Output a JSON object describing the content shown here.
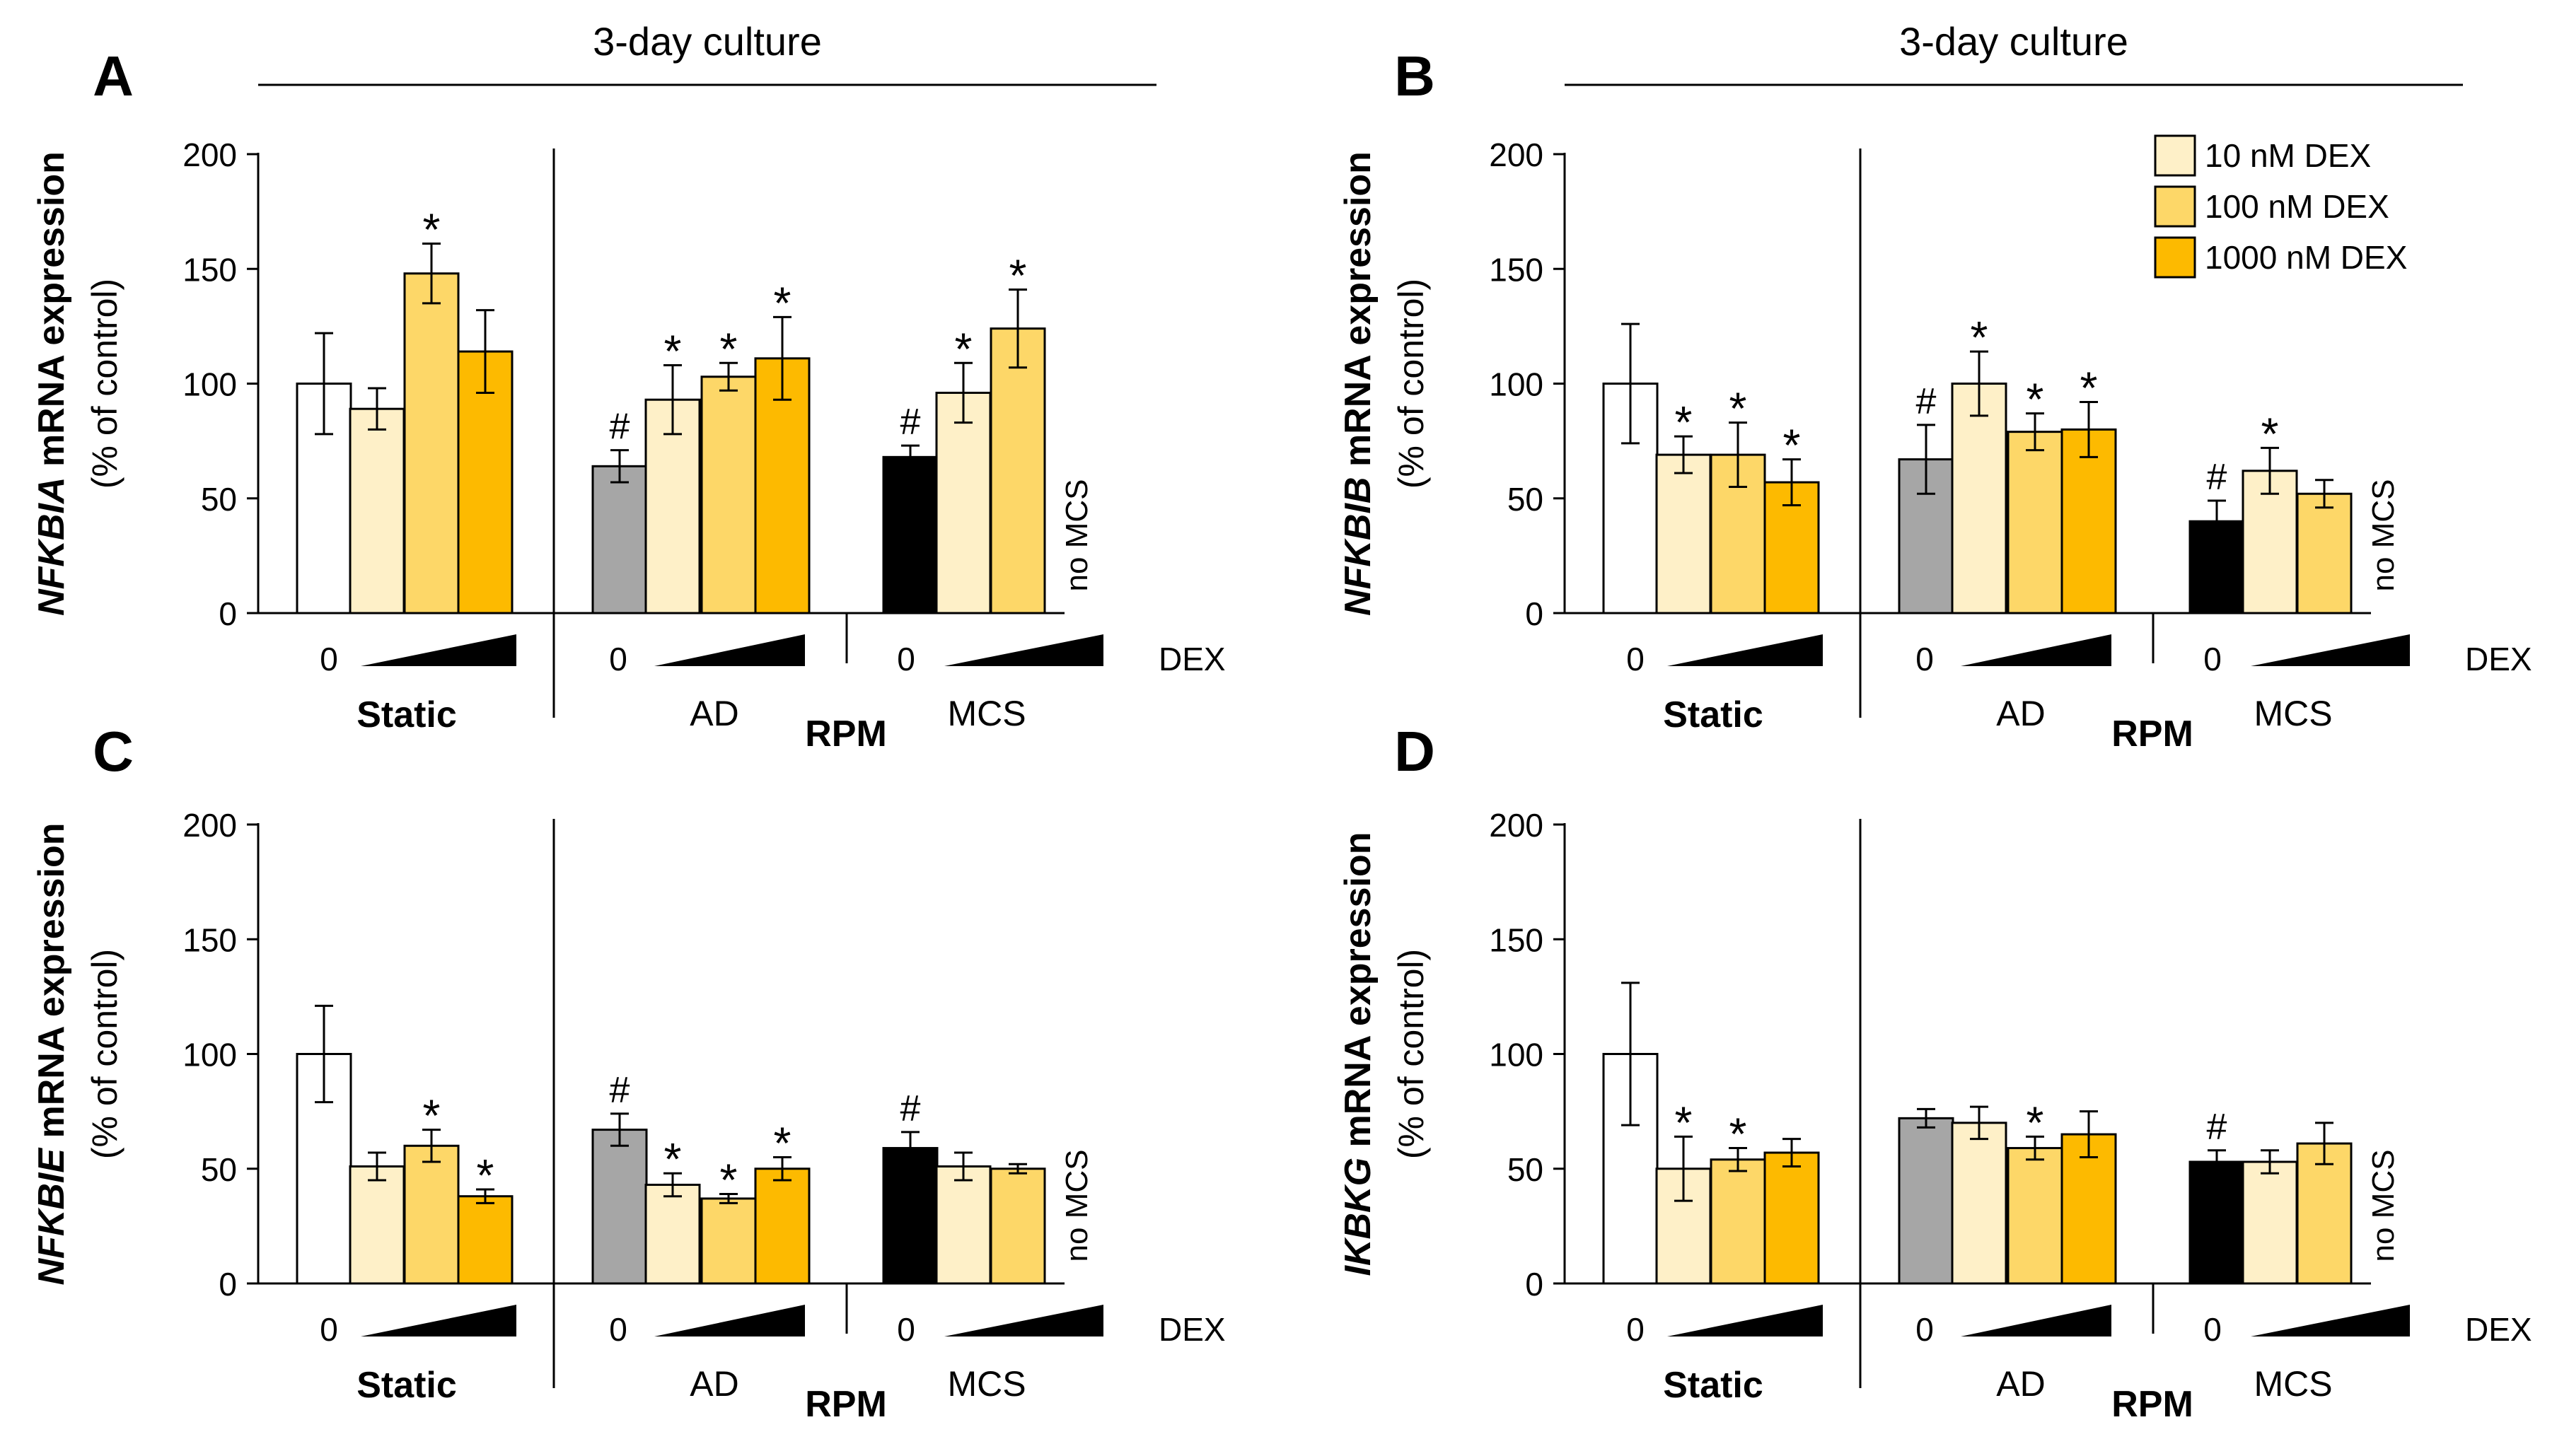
{
  "figure": {
    "culture_label": "3-day culture",
    "y_axis_unit": "(% of control)",
    "y_axis_suffix": " mRNA expression",
    "dex_axis_label": "DEX",
    "zero_label": "0",
    "static_label": "Static",
    "ad_label": "AD",
    "mcs_label": "MCS",
    "rpm_label": "RPM",
    "no_mcs_label": "no MCS",
    "legend": [
      {
        "label": "10 nM DEX",
        "color": "#FEF0C8"
      },
      {
        "label": "100 nM DEX",
        "color": "#FDD768"
      },
      {
        "label": "1000 nM DEX",
        "color": "#FDBA00"
      }
    ],
    "colors": {
      "control_static": "#FFFFFF",
      "control_ad": "#A6A6A6",
      "control_mcs": "#000000",
      "dex10": "#FEF0C8",
      "dex100": "#FDD768",
      "dex1000": "#FDBA00"
    }
  },
  "chart_data": [
    {
      "panel": "A",
      "type": "bar",
      "gene": "NFKBIA",
      "ylim": [
        0,
        200
      ],
      "yticks": [
        0,
        50,
        100,
        150,
        200
      ],
      "show_title": true,
      "show_legend": false,
      "groups": [
        {
          "name": "Static",
          "bars": [
            {
              "dex": "0",
              "value": 100,
              "err": 22,
              "mark": ""
            },
            {
              "dex": "10",
              "value": 89,
              "err": 9,
              "mark": ""
            },
            {
              "dex": "100",
              "value": 148,
              "err": 13,
              "mark": "*"
            },
            {
              "dex": "1000",
              "value": 114,
              "err": 18,
              "mark": ""
            }
          ]
        },
        {
          "name": "AD",
          "bars": [
            {
              "dex": "0",
              "value": 64,
              "err": 7,
              "mark": "#"
            },
            {
              "dex": "10",
              "value": 93,
              "err": 15,
              "mark": "*"
            },
            {
              "dex": "100",
              "value": 103,
              "err": 6,
              "mark": "*"
            },
            {
              "dex": "1000",
              "value": 111,
              "err": 18,
              "mark": "*"
            }
          ]
        },
        {
          "name": "MCS",
          "no_1000": true,
          "bars": [
            {
              "dex": "0",
              "value": 68,
              "err": 5,
              "mark": "#"
            },
            {
              "dex": "10",
              "value": 96,
              "err": 13,
              "mark": "*"
            },
            {
              "dex": "100",
              "value": 124,
              "err": 17,
              "mark": "*"
            }
          ]
        }
      ]
    },
    {
      "panel": "B",
      "type": "bar",
      "gene": "NFKBIB",
      "ylim": [
        0,
        200
      ],
      "yticks": [
        0,
        50,
        100,
        150,
        200
      ],
      "show_title": true,
      "show_legend": true,
      "groups": [
        {
          "name": "Static",
          "bars": [
            {
              "dex": "0",
              "value": 100,
              "err": 26,
              "mark": ""
            },
            {
              "dex": "10",
              "value": 69,
              "err": 8,
              "mark": "*"
            },
            {
              "dex": "100",
              "value": 69,
              "err": 14,
              "mark": "*"
            },
            {
              "dex": "1000",
              "value": 57,
              "err": 10,
              "mark": "*"
            }
          ]
        },
        {
          "name": "AD",
          "bars": [
            {
              "dex": "0",
              "value": 67,
              "err": 15,
              "mark": "#"
            },
            {
              "dex": "10",
              "value": 100,
              "err": 14,
              "mark": "*"
            },
            {
              "dex": "100",
              "value": 79,
              "err": 8,
              "mark": "*"
            },
            {
              "dex": "1000",
              "value": 80,
              "err": 12,
              "mark": "*"
            }
          ]
        },
        {
          "name": "MCS",
          "no_1000": true,
          "bars": [
            {
              "dex": "0",
              "value": 40,
              "err": 9,
              "mark": "#"
            },
            {
              "dex": "10",
              "value": 62,
              "err": 10,
              "mark": "*"
            },
            {
              "dex": "100",
              "value": 52,
              "err": 6,
              "mark": ""
            }
          ]
        }
      ]
    },
    {
      "panel": "C",
      "type": "bar",
      "gene": "NFKBIE",
      "ylim": [
        0,
        200
      ],
      "yticks": [
        0,
        50,
        100,
        150,
        200
      ],
      "show_title": false,
      "show_legend": false,
      "groups": [
        {
          "name": "Static",
          "bars": [
            {
              "dex": "0",
              "value": 100,
              "err": 21,
              "mark": ""
            },
            {
              "dex": "10",
              "value": 51,
              "err": 6,
              "mark": ""
            },
            {
              "dex": "100",
              "value": 60,
              "err": 7,
              "mark": "*"
            },
            {
              "dex": "1000",
              "value": 38,
              "err": 3,
              "mark": "*"
            }
          ]
        },
        {
          "name": "AD",
          "bars": [
            {
              "dex": "0",
              "value": 67,
              "err": 7,
              "mark": "#"
            },
            {
              "dex": "10",
              "value": 43,
              "err": 5,
              "mark": "*"
            },
            {
              "dex": "100",
              "value": 37,
              "err": 2,
              "mark": "*"
            },
            {
              "dex": "1000",
              "value": 50,
              "err": 5,
              "mark": "*"
            }
          ]
        },
        {
          "name": "MCS",
          "no_1000": true,
          "bars": [
            {
              "dex": "0",
              "value": 59,
              "err": 7,
              "mark": "#"
            },
            {
              "dex": "10",
              "value": 51,
              "err": 6,
              "mark": ""
            },
            {
              "dex": "100",
              "value": 50,
              "err": 2,
              "mark": ""
            }
          ]
        }
      ]
    },
    {
      "panel": "D",
      "type": "bar",
      "gene": "IKBKG",
      "ylim": [
        0,
        200
      ],
      "yticks": [
        0,
        50,
        100,
        150,
        200
      ],
      "show_title": false,
      "show_legend": false,
      "groups": [
        {
          "name": "Static",
          "bars": [
            {
              "dex": "0",
              "value": 100,
              "err": 31,
              "mark": ""
            },
            {
              "dex": "10",
              "value": 50,
              "err": 14,
              "mark": "*"
            },
            {
              "dex": "100",
              "value": 54,
              "err": 5,
              "mark": "*"
            },
            {
              "dex": "1000",
              "value": 57,
              "err": 6,
              "mark": ""
            }
          ]
        },
        {
          "name": "AD",
          "bars": [
            {
              "dex": "0",
              "value": 72,
              "err": 4,
              "mark": ""
            },
            {
              "dex": "10",
              "value": 70,
              "err": 7,
              "mark": ""
            },
            {
              "dex": "100",
              "value": 59,
              "err": 5,
              "mark": "*"
            },
            {
              "dex": "1000",
              "value": 65,
              "err": 10,
              "mark": ""
            }
          ]
        },
        {
          "name": "MCS",
          "no_1000": true,
          "bars": [
            {
              "dex": "0",
              "value": 53,
              "err": 5,
              "mark": "#"
            },
            {
              "dex": "10",
              "value": 53,
              "err": 5,
              "mark": ""
            },
            {
              "dex": "100",
              "value": 61,
              "err": 9,
              "mark": ""
            }
          ]
        }
      ]
    }
  ]
}
